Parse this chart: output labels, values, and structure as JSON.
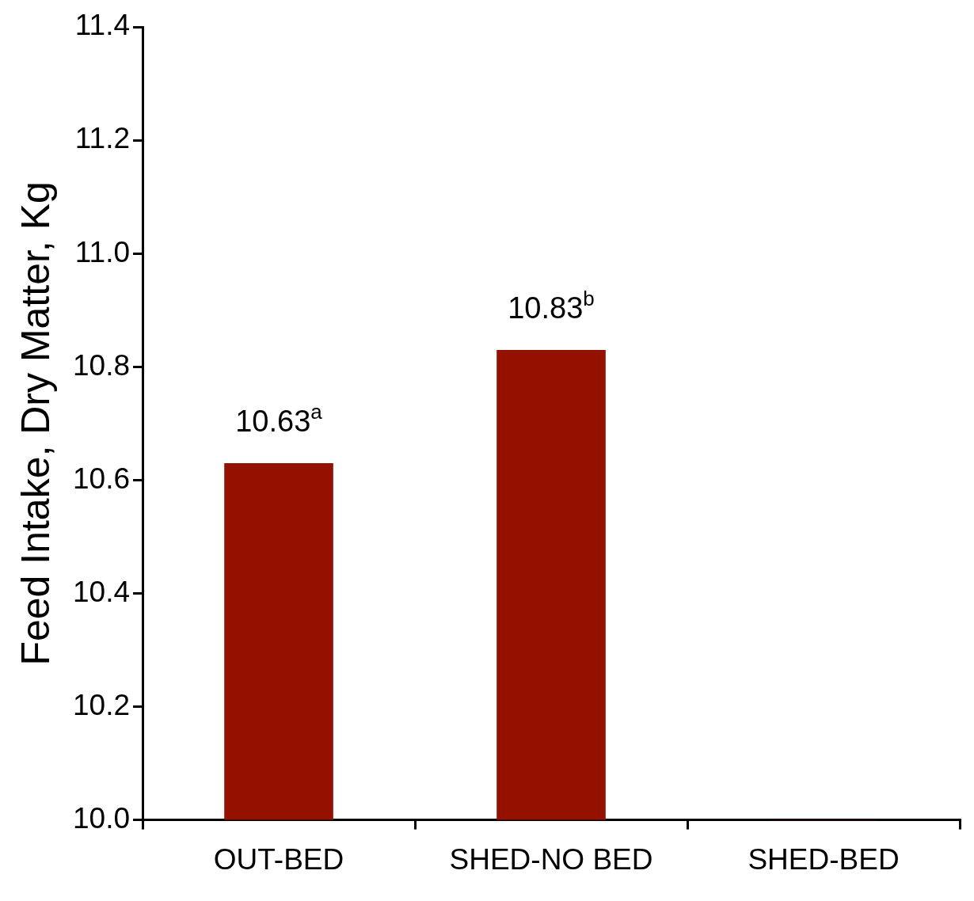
{
  "chart_data": {
    "type": "bar",
    "ylabel": "Feed Intake, Dry Matter, Kg",
    "categories": [
      "OUT-BED",
      "SHED-NO BED",
      "SHED-BED"
    ],
    "values": [
      10.63,
      10.83,
      10.0
    ],
    "color": "#941100",
    "value_labels": [
      "10.63$^{a}$",
      "10.83$^{b}$",
      null
    ],
    "ylim": [
      10.0,
      11.4
    ],
    "yticks": [
      {
        "value": 10.0,
        "label": "10.0"
      },
      10.2,
      10.4,
      10.6,
      10.8,
      {
        "value": 11.0,
        "label": "11.0"
      },
      11.2,
      11.4
    ],
    "grid": false,
    "legend": false
  }
}
